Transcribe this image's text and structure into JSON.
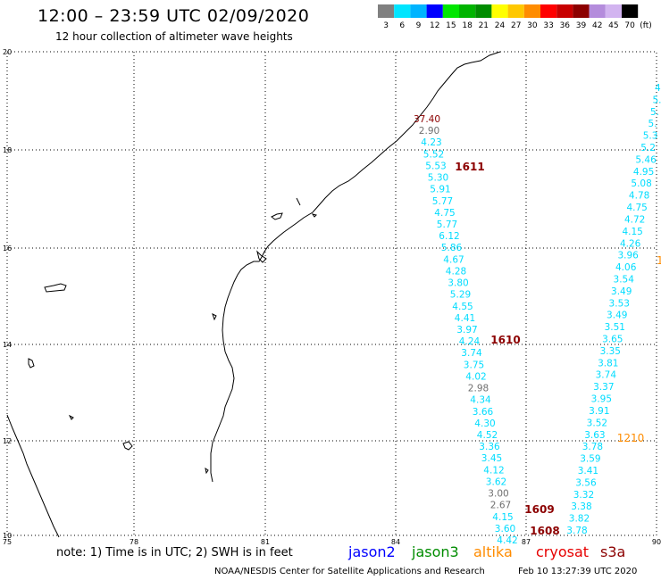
{
  "header": {
    "title": "12:00 – 23:59 UTC 02/09/2020",
    "subtitle": "12 hour collection of altimeter wave heights"
  },
  "color_scale": {
    "colors": [
      "#808080",
      "#00e5ff",
      "#00b4ff",
      "#0000ff",
      "#00e600",
      "#00b400",
      "#008c00",
      "#ffff00",
      "#ffc800",
      "#ff8c00",
      "#ff0000",
      "#c80000",
      "#8c0000",
      "#b48cdc",
      "#d2b4f0",
      "#000000"
    ],
    "labels": [
      "3",
      "6",
      "9",
      "12",
      "15",
      "18",
      "21",
      "24",
      "27",
      "30",
      "33",
      "36",
      "39",
      "42",
      "45",
      "70"
    ],
    "unit": "(ft)"
  },
  "axes": {
    "lon_labels": [
      "75",
      "78",
      "81",
      "84",
      "87",
      "90"
    ],
    "lat_labels": [
      "20",
      "18",
      "16",
      "14",
      "12",
      "10"
    ]
  },
  "tracks": {
    "cryosat_a": {
      "values": [
        "37.40",
        "2.90",
        "4.23",
        "5.52",
        "5.53",
        "5.30",
        "5.91",
        "5.77",
        "4.75",
        "5.77",
        "6.12",
        "5.86",
        "4.67",
        "4.28",
        "3.80",
        "5.29",
        "4.55",
        "4.41",
        "3.97",
        "4.24",
        "3.74",
        "3.75",
        "4.02",
        "2.98",
        "4.34",
        "3.66",
        "4.30",
        "4.52",
        "3.36",
        "3.45",
        "4.12",
        "3.62",
        "3.00",
        "2.67",
        "4.15",
        "3.60",
        "4.42"
      ],
      "times": [
        "1611",
        "1610",
        "1609",
        "1608"
      ]
    },
    "cryosat_b": {
      "values": [
        "4.",
        "5.",
        "5.",
        "5.",
        "5.3",
        "5.2",
        "5.46",
        "4.95",
        "5.08",
        "4.78",
        "4.75",
        "4.72",
        "4.15",
        "4.26",
        "3.96",
        "4.06",
        "3.54",
        "3.49",
        "3.53",
        "3.49",
        "3.51",
        "3.65",
        "3.35",
        "3.81",
        "3.74",
        "3.37",
        "3.95",
        "3.91",
        "3.52",
        "3.63",
        "3.78",
        "3.59",
        "3.41",
        "3.56",
        "3.32",
        "3.38",
        "3.82",
        "3.78"
      ],
      "times": [
        "1210",
        "1"
      ]
    }
  },
  "footer": {
    "note": "note: 1) Time is in UTC; 2) SWH is in feet",
    "satellites": [
      {
        "name": "jason2",
        "color": "#0000ff"
      },
      {
        "name": "jason3",
        "color": "#008c00"
      },
      {
        "name": "altika",
        "color": "#ff8c00"
      },
      {
        "name": "cryosat",
        "color": "#e60000"
      },
      {
        "name": "s3a",
        "color": "#8c0000"
      }
    ],
    "credit": "NOAA/NESDIS Center for Satellite Applications and Research",
    "timestamp": "Feb 10 13:27:39 UTC 2020"
  }
}
